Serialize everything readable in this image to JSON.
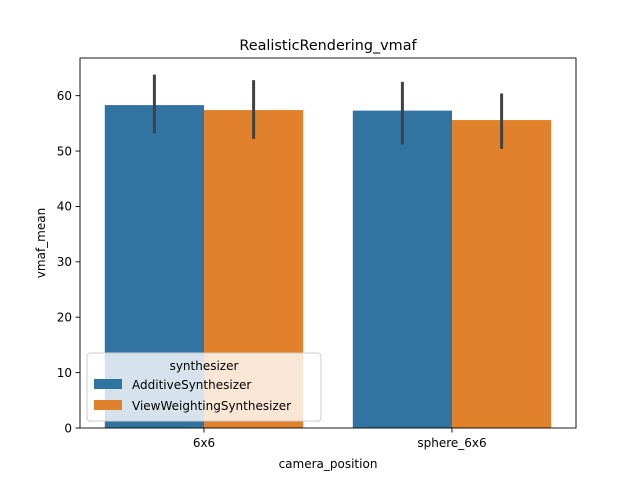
{
  "chart_data": {
    "type": "bar",
    "title": "RealisticRendering_vmaf",
    "xlabel": "camera_position",
    "ylabel": "vmaf_mean",
    "categories": [
      "6x6",
      "sphere_6x6"
    ],
    "ylim": [
      0,
      66.8
    ],
    "yticks": [
      0,
      10,
      20,
      30,
      40,
      50,
      60
    ],
    "grid": false,
    "legend": {
      "title": "synthesizer",
      "placement": "lower-left"
    },
    "series": [
      {
        "name": "AdditiveSynthesizer",
        "color": "#3274a1",
        "values": [
          58.3,
          57.3
        ],
        "error_low": [
          53.2,
          51.2
        ],
        "error_high": [
          63.8,
          62.5
        ]
      },
      {
        "name": "ViewWeightingSynthesizer",
        "color": "#e1812c",
        "values": [
          57.4,
          55.6
        ],
        "error_low": [
          52.2,
          50.4
        ],
        "error_high": [
          62.8,
          60.4
        ]
      }
    ]
  }
}
